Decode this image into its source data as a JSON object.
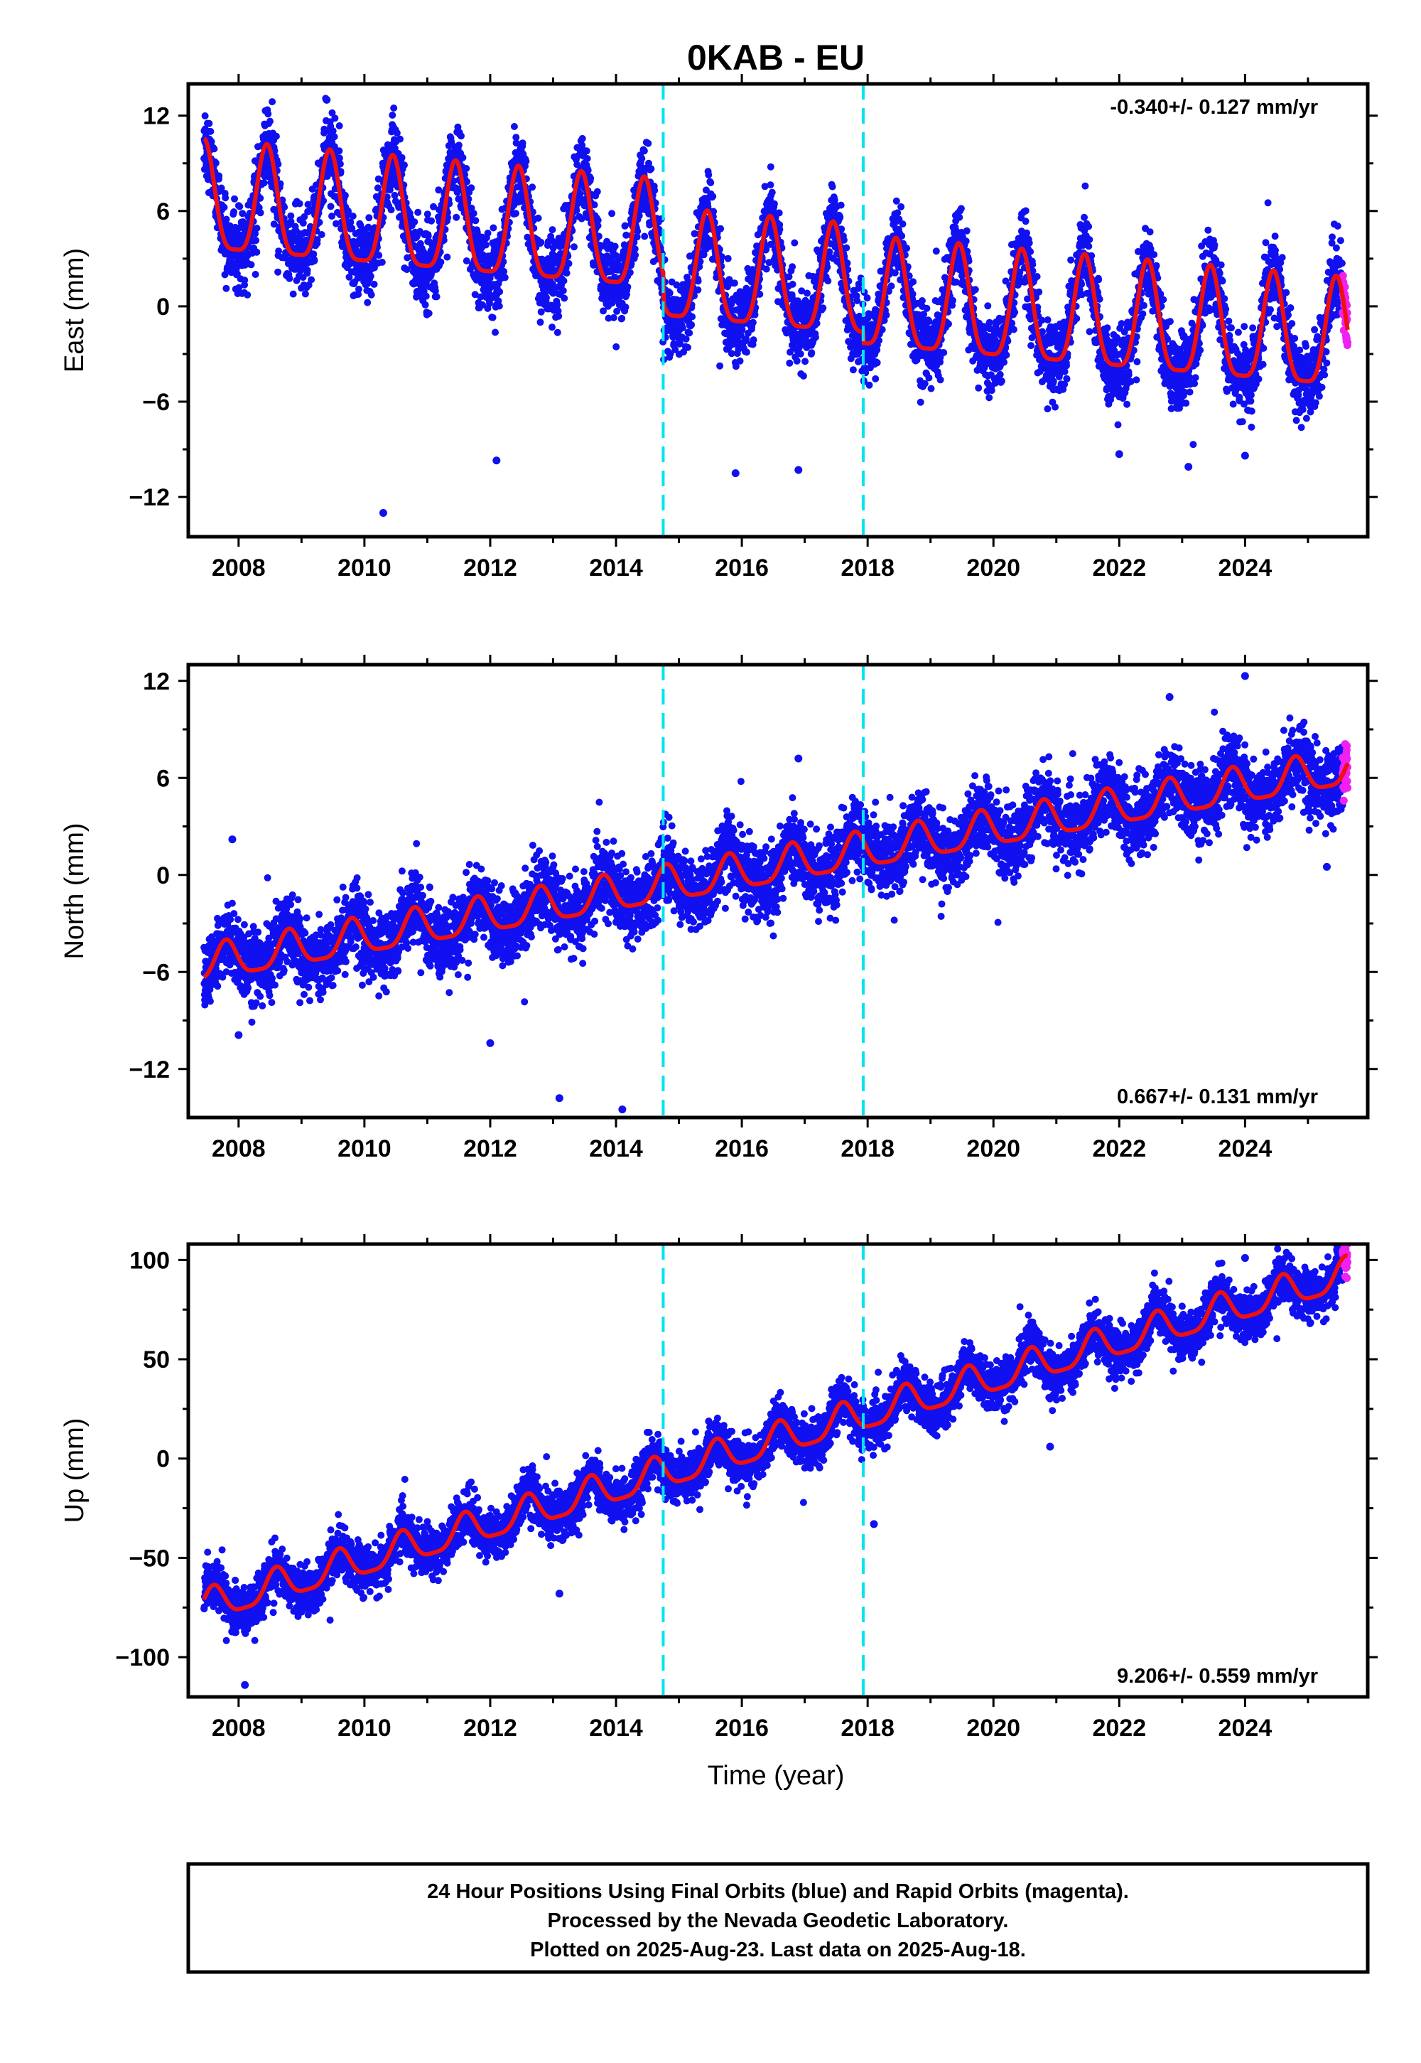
{
  "title": "0KAB - EU",
  "colors": {
    "final": "#1010f0",
    "rapid": "#f020f0",
    "model": "#ee1010",
    "offset": "#00e5ee",
    "frame": "#000000"
  },
  "x_ticks": [
    "2008",
    "2010",
    "2012",
    "2014",
    "2016",
    "2018",
    "2020",
    "2022",
    "2024"
  ],
  "x_label": "Time (year)",
  "offset_epochs": [
    2014.75,
    2017.93
  ],
  "chart_data": [
    {
      "type": "scatter",
      "name": "east",
      "ylabel": "East (mm)",
      "xlim": [
        2007.2,
        2025.95
      ],
      "ylim": [
        -14.5,
        14
      ],
      "yticks": [
        "12",
        "6",
        "0",
        "-6",
        "-12"
      ],
      "ytick_values": [
        12,
        6,
        0,
        -6,
        -12
      ],
      "rate_label": "-0.340+/- 0.127 mm/yr",
      "rate_position": "top-right",
      "model": {
        "offset": 6.3,
        "rate": -0.34,
        "annual_amplitude": 3.4,
        "peak_phase": 0.45,
        "steps": [
          -1.8,
          -0.7
        ],
        "noise": 1.2
      },
      "data_start": 2007.45,
      "final_end": 2025.55,
      "rapid_end": 2025.63,
      "outliers": [
        [
          2009.4,
          13.0
        ],
        [
          2010.3,
          -13.0
        ],
        [
          2012.1,
          -9.7
        ],
        [
          2015.9,
          -10.5
        ],
        [
          2016.9,
          -10.3
        ],
        [
          2022.0,
          -9.3
        ],
        [
          2023.1,
          -10.1
        ],
        [
          2024.0,
          -9.4
        ]
      ]
    },
    {
      "type": "scatter",
      "name": "north",
      "ylabel": "North (mm)",
      "xlim": [
        2007.2,
        2025.95
      ],
      "ylim": [
        -15,
        13
      ],
      "yticks": [
        "12",
        "6",
        "0",
        "-6",
        "-12"
      ],
      "ytick_values": [
        12,
        6,
        0,
        -6,
        -12
      ],
      "rate_label": "0.667+/- 0.131 mm/yr",
      "rate_position": "bottom-right",
      "model": {
        "offset": -5.6,
        "rate": 0.667,
        "annual_amplitude": 1.1,
        "peak_phase": 0.8,
        "steps": [
          0.0,
          0.0
        ],
        "noise": 1.1
      },
      "data_start": 2007.45,
      "final_end": 2025.55,
      "rapid_end": 2025.63,
      "outliers": [
        [
          2007.9,
          2.2
        ],
        [
          2008.0,
          -9.9
        ],
        [
          2012.0,
          -10.4
        ],
        [
          2013.1,
          -13.8
        ],
        [
          2014.1,
          -14.5
        ],
        [
          2016.9,
          7.2
        ],
        [
          2022.8,
          11.0
        ],
        [
          2024.0,
          12.3
        ],
        [
          2025.3,
          0.5
        ]
      ]
    },
    {
      "type": "scatter",
      "name": "up",
      "ylabel": "Up (mm)",
      "xlim": [
        2007.2,
        2025.95
      ],
      "ylim": [
        -120,
        108
      ],
      "yticks": [
        "100",
        "50",
        "0",
        "-50",
        "-100"
      ],
      "ytick_values": [
        100,
        50,
        0,
        -50,
        -100
      ],
      "rate_label": "9.206+/- 0.559 mm/yr",
      "rate_position": "bottom-right",
      "model": {
        "offset": -75,
        "rate": 9.206,
        "annual_amplitude": 8,
        "peak_phase": 0.6,
        "steps": [
          0.0,
          0.0
        ],
        "noise": 6
      },
      "data_start": 2007.45,
      "final_end": 2025.55,
      "rapid_end": 2025.63,
      "outliers": [
        [
          2008.1,
          -114
        ],
        [
          2018.1,
          -33
        ],
        [
          2020.9,
          6
        ],
        [
          2024.0,
          101
        ],
        [
          2013.1,
          -68
        ]
      ]
    }
  ],
  "footer": {
    "line1": "24 Hour Positions Using Final Orbits (blue) and Rapid Orbits (magenta).",
    "line2": "Processed by the Nevada Geodetic Laboratory.",
    "line3": "Plotted on 2025-Aug-23. Last data on 2025-Aug-18."
  }
}
